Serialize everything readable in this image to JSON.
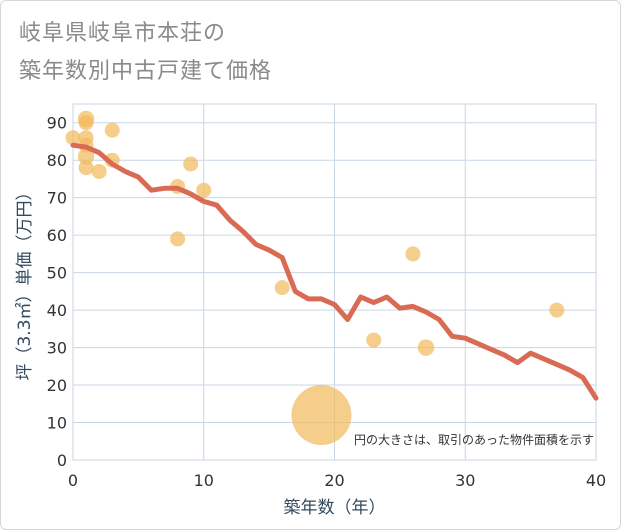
{
  "chart_data": {
    "type": "scatter",
    "title_line1": "岐阜県岐阜市本荘の",
    "title_line2": "築年数別中古戸建て価格",
    "xlabel": "築年数（年）",
    "ylabel": "坪（3.3㎡）単価（万円）",
    "xlim": [
      0,
      40
    ],
    "ylim": [
      0,
      95
    ],
    "xticks": [
      0,
      10,
      20,
      30,
      40
    ],
    "yticks": [
      0,
      10,
      20,
      30,
      40,
      50,
      60,
      70,
      80,
      90
    ],
    "note": "円の大きさは、取引のあった物件面積を示す",
    "colors": {
      "point": "#f2b95a",
      "line": "#d96b55",
      "grid": "#c9d6e3"
    },
    "points": [
      {
        "x": 0,
        "y": 86,
        "size": 1.0
      },
      {
        "x": 1,
        "y": 91,
        "size": 1.1
      },
      {
        "x": 1,
        "y": 90,
        "size": 1.0
      },
      {
        "x": 1,
        "y": 86,
        "size": 1.0
      },
      {
        "x": 1,
        "y": 84,
        "size": 1.0
      },
      {
        "x": 1,
        "y": 81,
        "size": 1.1
      },
      {
        "x": 1,
        "y": 78,
        "size": 1.0
      },
      {
        "x": 2,
        "y": 77,
        "size": 1.0
      },
      {
        "x": 3,
        "y": 88,
        "size": 1.0
      },
      {
        "x": 3,
        "y": 80,
        "size": 1.0
      },
      {
        "x": 8,
        "y": 73,
        "size": 1.0
      },
      {
        "x": 8,
        "y": 59,
        "size": 1.0
      },
      {
        "x": 9,
        "y": 79,
        "size": 1.0
      },
      {
        "x": 10,
        "y": 72,
        "size": 1.0
      },
      {
        "x": 16,
        "y": 46,
        "size": 1.0
      },
      {
        "x": 19,
        "y": 12,
        "size": 4.0
      },
      {
        "x": 23,
        "y": 32,
        "size": 1.0
      },
      {
        "x": 26,
        "y": 55,
        "size": 1.0
      },
      {
        "x": 27,
        "y": 30,
        "size": 1.1
      },
      {
        "x": 37,
        "y": 40,
        "size": 1.0
      }
    ],
    "trend": {
      "x": [
        0,
        1,
        2,
        3,
        4,
        5,
        6,
        7,
        8,
        9,
        10,
        11,
        12,
        13,
        14,
        15,
        16,
        17,
        18,
        19,
        20,
        21,
        22,
        23,
        24,
        25,
        26,
        27,
        28,
        29,
        30,
        31,
        32,
        33,
        34,
        35,
        36,
        37,
        38,
        39,
        40
      ],
      "y": [
        84,
        83.5,
        82,
        79,
        77,
        75.5,
        72,
        72.5,
        72.5,
        71,
        69,
        68,
        64,
        61,
        57.5,
        56,
        54,
        45,
        43,
        43,
        41.5,
        37.5,
        43.5,
        42,
        43.5,
        40.5,
        41,
        39.5,
        37.5,
        33,
        32.5,
        31,
        29.5,
        28,
        26,
        28.5,
        27,
        25.5,
        24,
        22,
        16.5
      ]
    }
  }
}
